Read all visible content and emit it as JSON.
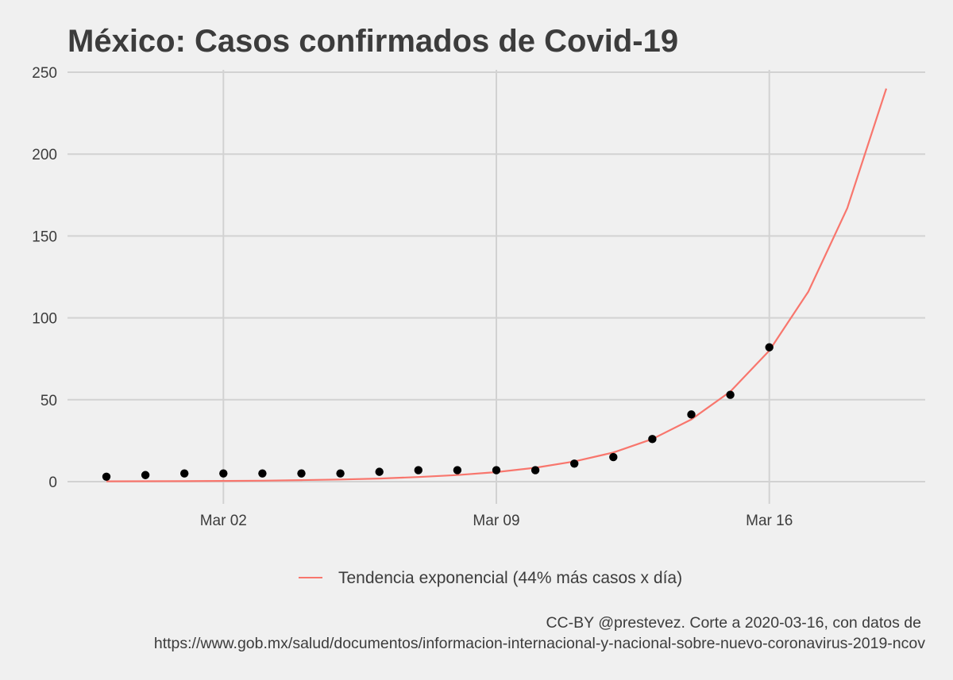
{
  "chart_data": {
    "type": "scatter",
    "title": "México: Casos confirmados de Covid-19",
    "xlabel": "",
    "ylabel": "",
    "x_dates": [
      "2020-02-28",
      "2020-02-29",
      "2020-03-01",
      "2020-03-02",
      "2020-03-03",
      "2020-03-04",
      "2020-03-05",
      "2020-03-06",
      "2020-03-07",
      "2020-03-08",
      "2020-03-09",
      "2020-03-10",
      "2020-03-11",
      "2020-03-12",
      "2020-03-13",
      "2020-03-14",
      "2020-03-15",
      "2020-03-16"
    ],
    "series": [
      {
        "kind": "points",
        "values": [
          3,
          4,
          5,
          5,
          5,
          5,
          5,
          6,
          7,
          7,
          7,
          7,
          11,
          15,
          26,
          41,
          53,
          82
        ]
      },
      {
        "kind": "line",
        "name": "Tendencia exponencial (44% más casos x día)",
        "x_dates": [
          "2020-02-28",
          "2020-02-29",
          "2020-03-01",
          "2020-03-02",
          "2020-03-03",
          "2020-03-04",
          "2020-03-05",
          "2020-03-06",
          "2020-03-07",
          "2020-03-08",
          "2020-03-09",
          "2020-03-10",
          "2020-03-11",
          "2020-03-12",
          "2020-03-13",
          "2020-03-14",
          "2020-03-15",
          "2020-03-16",
          "2020-03-17",
          "2020-03-18",
          "2020-03-19"
        ],
        "values": [
          0.2,
          0.25,
          0.3,
          0.45,
          0.6,
          0.9,
          1.3,
          1.9,
          2.8,
          4.0,
          5.8,
          8.5,
          12.3,
          17.8,
          26,
          38,
          55,
          80,
          116,
          167,
          240
        ],
        "color": "#f8766d"
      }
    ],
    "x_ticks": [
      {
        "date": "2020-03-02",
        "label": "Mar 02"
      },
      {
        "date": "2020-03-09",
        "label": "Mar 09"
      },
      {
        "date": "2020-03-16",
        "label": "Mar 16"
      }
    ],
    "y_ticks": [
      0,
      50,
      100,
      150,
      200,
      250
    ],
    "ylim": [
      0,
      250
    ],
    "grid": true,
    "legend_position": "bottom",
    "caption": [
      "CC-BY @prestevez. Corte a 2020-03-16, con datos de",
      "https://www.gob.mx/salud/documentos/informacion-internacional-y-nacional-sobre-nuevo-coronavirus-2019-ncov"
    ],
    "colors": {
      "background": "#f0f0f0",
      "grid": "#d2d2d2",
      "text": "#3c3c3c",
      "points": "#000000",
      "trend": "#f8766d"
    }
  }
}
